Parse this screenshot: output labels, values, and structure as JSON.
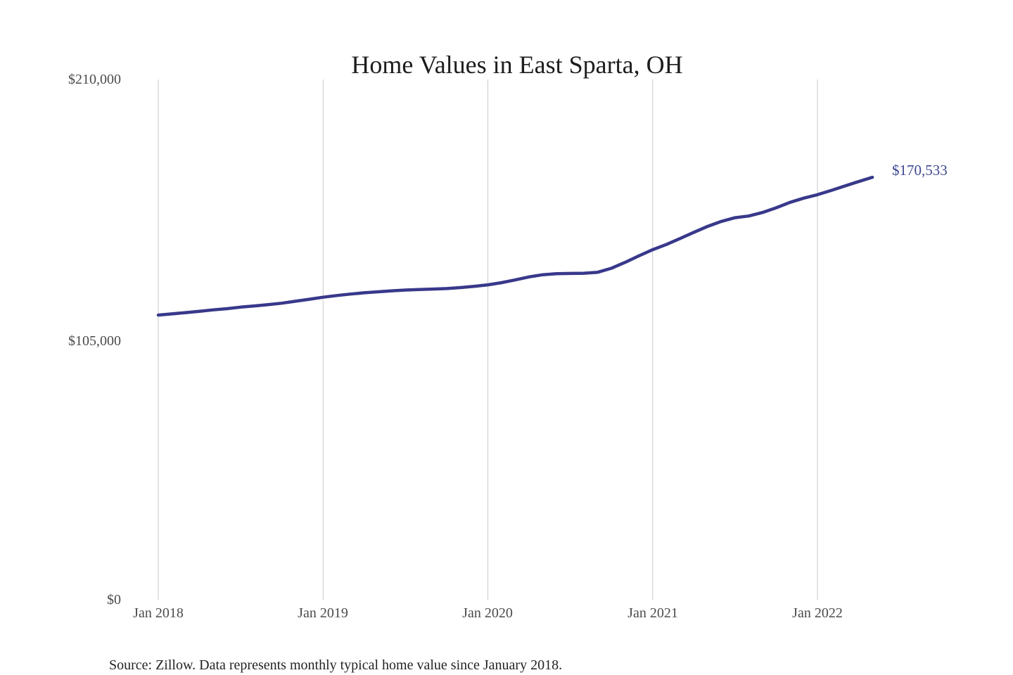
{
  "colors": {
    "background": "#ffffff",
    "line": "#38388b",
    "annotation": "#3e4891",
    "gridline": "#c9c9c9",
    "tick_label": "#4b4b4b",
    "title": "#1d1d1d",
    "source": "#232323"
  },
  "chart_data": {
    "type": "line",
    "title": "Home Values in East Sparta, OH",
    "source_note": "Source: Zillow. Data represents monthly typical home value since January 2018.",
    "last_value_annotation": "$170,533",
    "last_value": 170533,
    "grid": "vertical-only",
    "legend": "none",
    "ylim": [
      0,
      210000
    ],
    "y_ticks": [
      {
        "value": 0,
        "label": "$0"
      },
      {
        "value": 105000,
        "label": "$105,000"
      },
      {
        "value": 210000,
        "label": "$210,000"
      }
    ],
    "x_ticks": [
      {
        "label": "Jan 2018",
        "month_index": 0
      },
      {
        "label": "Jan 2019",
        "month_index": 12
      },
      {
        "label": "Jan 2020",
        "month_index": 24
      },
      {
        "label": "Jan 2021",
        "month_index": 36
      },
      {
        "label": "Jan 2022",
        "month_index": 48
      }
    ],
    "x": [
      "2018-01",
      "2018-02",
      "2018-03",
      "2018-04",
      "2018-05",
      "2018-06",
      "2018-07",
      "2018-08",
      "2018-09",
      "2018-10",
      "2018-11",
      "2018-12",
      "2019-01",
      "2019-02",
      "2019-03",
      "2019-04",
      "2019-05",
      "2019-06",
      "2019-07",
      "2019-08",
      "2019-09",
      "2019-10",
      "2019-11",
      "2019-12",
      "2020-01",
      "2020-02",
      "2020-03",
      "2020-04",
      "2020-05",
      "2020-06",
      "2020-07",
      "2020-08",
      "2020-09",
      "2020-10",
      "2020-11",
      "2020-12",
      "2021-01",
      "2021-02",
      "2021-03",
      "2021-04",
      "2021-05",
      "2021-06",
      "2021-07",
      "2021-08",
      "2021-09",
      "2021-10",
      "2021-11",
      "2021-12",
      "2022-01",
      "2022-02",
      "2022-03",
      "2022-04",
      "2022-05"
    ],
    "values": [
      114900,
      115400,
      115900,
      116400,
      117000,
      117500,
      118100,
      118600,
      119100,
      119700,
      120500,
      121300,
      122100,
      122800,
      123400,
      123900,
      124300,
      124700,
      125000,
      125200,
      125400,
      125600,
      126000,
      126500,
      127100,
      128000,
      129100,
      130300,
      131200,
      131600,
      131700,
      131800,
      132200,
      133800,
      136200,
      138800,
      141300,
      143400,
      145800,
      148300,
      150700,
      152700,
      154200,
      154900,
      156300,
      158200,
      160400,
      162100,
      163500,
      165200,
      167000,
      168800,
      170533
    ]
  }
}
